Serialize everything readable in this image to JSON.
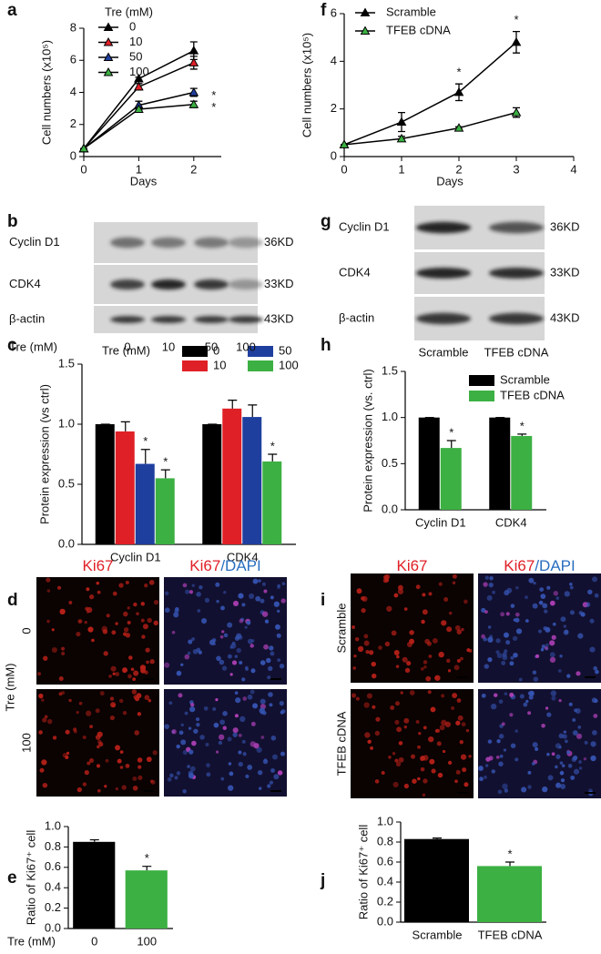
{
  "chart_data": [
    {
      "type": "line",
      "letter": "a",
      "xlabel": "Days",
      "ylabel": "Cell numbers (x10⁵)",
      "legend_title": "Tre (mM)",
      "x": [
        0,
        1,
        2
      ],
      "xlim": [
        0,
        2.5
      ],
      "xticks": [
        0,
        1,
        2
      ],
      "ylim": [
        0,
        8
      ],
      "yticks": [
        0,
        2,
        4,
        6,
        8
      ],
      "series": [
        {
          "name": "0",
          "color": "#000000",
          "values": [
            0.5,
            4.85,
            6.6
          ],
          "errors": [
            0,
            0.1,
            0.55
          ]
        },
        {
          "name": "10",
          "color": "#e02027",
          "values": [
            0.5,
            4.35,
            5.85
          ],
          "errors": [
            0,
            0.2,
            0.4
          ]
        },
        {
          "name": "50",
          "color": "#1f3f9f",
          "values": [
            0.5,
            3.2,
            4.0
          ],
          "errors": [
            0,
            0.25,
            0.25
          ]
        },
        {
          "name": "100",
          "color": "#3cb043",
          "values": [
            0.5,
            2.95,
            3.25
          ],
          "errors": [
            0,
            0.1,
            0.2
          ]
        }
      ],
      "annotations": [
        {
          "text": "*",
          "series": 2,
          "index": 2
        },
        {
          "text": "*",
          "series": 3,
          "index": 2
        }
      ]
    },
    {
      "type": "line",
      "letter": "f",
      "xlabel": "Days",
      "ylabel": "Cell numbers (x10⁵)",
      "x": [
        0,
        1,
        2,
        3
      ],
      "xlim": [
        0,
        4
      ],
      "xticks": [
        0,
        1,
        2,
        3,
        4
      ],
      "ylim": [
        0,
        6
      ],
      "yticks": [
        0,
        2,
        4,
        6
      ],
      "series": [
        {
          "name": "Scramble",
          "color": "#000000",
          "values": [
            0.5,
            1.45,
            2.7,
            4.8
          ],
          "errors": [
            0,
            0.4,
            0.35,
            0.45
          ]
        },
        {
          "name": "TFEB cDNA",
          "color": "#3cb043",
          "values": [
            0.5,
            0.75,
            1.2,
            1.85
          ],
          "errors": [
            0,
            0.1,
            0.05,
            0.2
          ]
        }
      ],
      "annotations": [
        {
          "text": "*",
          "series": 0,
          "index": 2
        },
        {
          "text": "*",
          "series": 0,
          "index": 3
        }
      ]
    },
    {
      "type": "bar",
      "letter": "c",
      "ylabel": "Protein expression (vs ctrl)",
      "legend_title": "Tre (mM)",
      "categories": [
        "Cyclin D1",
        "CDK4"
      ],
      "ylim": [
        0,
        1.5
      ],
      "yticks": [
        {
          "value": 0,
          "label": "0.0"
        },
        0.5,
        {
          "value": 1,
          "label": "1.0"
        },
        1.5
      ],
      "series": [
        {
          "name": "0",
          "color": "#000000",
          "values": [
            1,
            1
          ],
          "errors": [
            0,
            0
          ]
        },
        {
          "name": "10",
          "color": "#e02027",
          "values": [
            0.94,
            1.13
          ],
          "errors": [
            0.08,
            0.07
          ]
        },
        {
          "name": "50",
          "color": "#1f3f9f",
          "values": [
            0.67,
            1.06
          ],
          "errors": [
            0.12,
            0.1
          ]
        },
        {
          "name": "100",
          "color": "#3cb043",
          "values": [
            0.55,
            0.69
          ],
          "errors": [
            0.07,
            0.06
          ]
        }
      ],
      "annotations": [
        {
          "text": "*",
          "series": 2,
          "index": 0
        },
        {
          "text": "*",
          "series": 3,
          "index": 0
        },
        {
          "text": "*",
          "series": 3,
          "index": 1
        }
      ]
    },
    {
      "type": "bar",
      "letter": "h",
      "ylabel": "Protein expression (vs. ctrl)",
      "categories": [
        "Cyclin D1",
        "CDK4"
      ],
      "ylim": [
        0,
        1.5
      ],
      "yticks": [
        {
          "value": 0,
          "label": "0.0"
        },
        0.5,
        {
          "value": 1,
          "label": "1.0"
        },
        1.5
      ],
      "series": [
        {
          "name": "Scramble",
          "color": "#000000",
          "values": [
            1,
            1
          ],
          "errors": [
            0,
            0
          ]
        },
        {
          "name": "TFEB cDNA",
          "color": "#3cb043",
          "values": [
            0.67,
            0.8
          ],
          "errors": [
            0.08,
            0.02
          ]
        }
      ],
      "annotations": [
        {
          "text": "*",
          "series": 1,
          "index": 0
        },
        {
          "text": "*",
          "series": 1,
          "index": 1
        }
      ]
    },
    {
      "type": "bar",
      "letter": "e",
      "ylabel": "Ratio of Ki67⁺ cell",
      "xlabel": "Tre (mM)",
      "categories": [
        "0",
        "100"
      ],
      "values": [
        0.85,
        0.57
      ],
      "errors": [
        0.02,
        0.04
      ],
      "colors": [
        "#000000",
        "#3cb043"
      ],
      "ylim": [
        0,
        1.0
      ],
      "yticks": [
        {
          "value": 0,
          "label": "0.0"
        },
        0.2,
        0.4,
        0.6,
        0.8,
        {
          "value": 1,
          "label": "1.0"
        }
      ],
      "annotations": [
        {
          "text": "*",
          "index": 1
        }
      ]
    },
    {
      "type": "bar",
      "letter": "j",
      "ylabel": "Ratio of Ki67⁺ cell",
      "categories": [
        "Scramble",
        "TFEB cDNA"
      ],
      "values": [
        0.83,
        0.56
      ],
      "errors": [
        0.01,
        0.04
      ],
      "colors": [
        "#000000",
        "#3cb043"
      ],
      "ylim": [
        0,
        1.0
      ],
      "yticks": [
        {
          "value": 0,
          "label": "0.0"
        },
        0.2,
        0.4,
        0.6,
        0.8,
        {
          "value": 1,
          "label": "1.0"
        }
      ],
      "annotations": [
        {
          "text": "*",
          "index": 1
        }
      ]
    }
  ],
  "blots": [
    {
      "letter": "b",
      "rows": [
        {
          "label": "Cyclin D1",
          "size": "36KD"
        },
        {
          "label": "CDK4",
          "size": "33KD"
        },
        {
          "label": "β-actin",
          "size": "43KD"
        }
      ],
      "lanes_title": "Tre (mM)",
      "lanes": [
        "0",
        "10",
        "50",
        "100"
      ]
    },
    {
      "letter": "g",
      "rows": [
        {
          "label": "Cyclin D1",
          "size": "36KD"
        },
        {
          "label": "CDK4",
          "size": "33KD"
        },
        {
          "label": "β-actin",
          "size": "43KD"
        }
      ],
      "lanes": [
        "Scramble",
        "TFEB cDNA"
      ]
    }
  ],
  "micrographs": [
    {
      "letter": "d",
      "columns": [
        [
          "Ki67"
        ],
        [
          "Ki67",
          "/DAPI"
        ]
      ],
      "rows_title": "Tre (mM)",
      "rows": [
        "0",
        "100"
      ]
    },
    {
      "letter": "i",
      "columns": [
        [
          "Ki67"
        ],
        [
          "Ki67",
          "/DAPI"
        ]
      ],
      "rows": [
        "Scramble",
        "TFEB cDNA"
      ]
    }
  ]
}
